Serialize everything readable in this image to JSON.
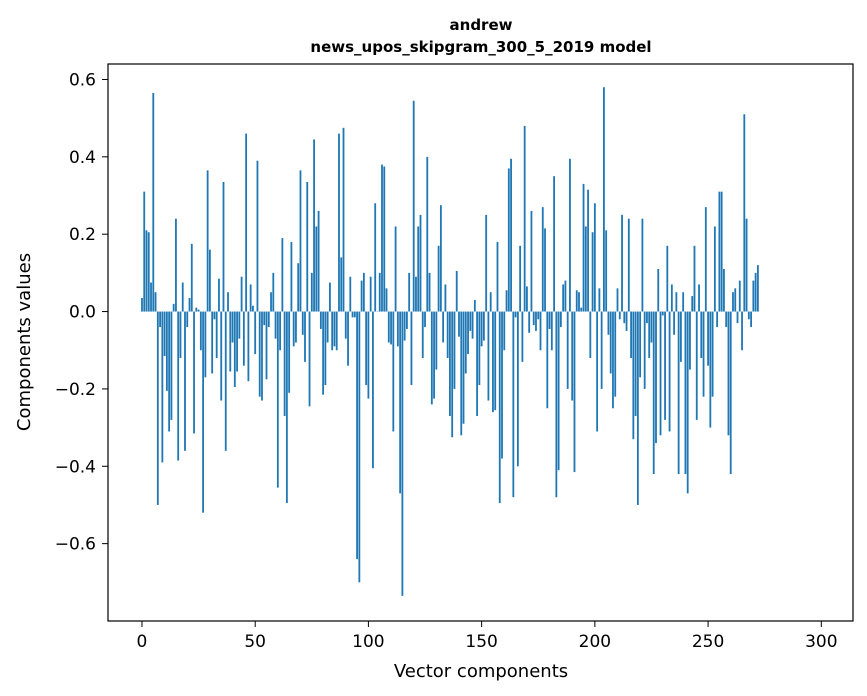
{
  "chart_data": {
    "type": "bar",
    "title_line1": "andrew",
    "title_line2": "news_upos_skipgram_300_5_2019 model",
    "xlabel": "Vector components",
    "ylabel": "Components values",
    "xlim": [
      -15,
      314
    ],
    "ylim": [
      -0.8,
      0.64
    ],
    "xticks": [
      0,
      50,
      100,
      150,
      200,
      250,
      300
    ],
    "xtick_labels": [
      "0",
      "50",
      "100",
      "150",
      "200",
      "250",
      "300"
    ],
    "yticks": [
      -0.6,
      -0.4,
      -0.2,
      0.0,
      0.2,
      0.4,
      0.6
    ],
    "ytick_labels": [
      "−0.6",
      "−0.4",
      "−0.2",
      "0.0",
      "0.2",
      "0.4",
      "0.6"
    ],
    "bar_color": "#1f77b4",
    "values": [
      0.035,
      0.31,
      0.21,
      0.205,
      0.075,
      0.565,
      0.05,
      -0.5,
      -0.04,
      -0.39,
      -0.115,
      -0.205,
      -0.31,
      -0.28,
      0.02,
      0.24,
      -0.385,
      -0.12,
      0.075,
      -0.36,
      -0.04,
      0.035,
      0.175,
      -0.315,
      0.01,
      0.005,
      -0.1,
      -0.52,
      -0.17,
      0.365,
      0.16,
      -0.16,
      -0.02,
      -0.12,
      0.085,
      -0.23,
      0.335,
      -0.36,
      0.05,
      -0.155,
      -0.08,
      -0.195,
      -0.155,
      -0.07,
      0.09,
      -0.14,
      0.46,
      -0.18,
      0.07,
      0.015,
      -0.11,
      0.39,
      -0.22,
      -0.23,
      -0.035,
      -0.175,
      -0.04,
      0.05,
      0.1,
      -0.07,
      -0.455,
      -0.1,
      0.19,
      -0.27,
      -0.495,
      -0.21,
      0.18,
      -0.09,
      -0.08,
      0.125,
      0.365,
      -0.06,
      -0.13,
      0.335,
      -0.245,
      0.1,
      0.445,
      0.22,
      0.26,
      -0.045,
      -0.215,
      -0.19,
      -0.08,
      0.075,
      -0.1,
      -0.09,
      -0.1,
      0.46,
      0.14,
      0.475,
      -0.07,
      -0.14,
      0.09,
      -0.015,
      -0.015,
      -0.64,
      -0.7,
      0.08,
      0.1,
      -0.19,
      -0.225,
      0.09,
      -0.405,
      0.28,
      0.0,
      0.1,
      0.38,
      0.375,
      0.06,
      -0.08,
      -0.085,
      -0.31,
      0.22,
      -0.09,
      -0.47,
      -0.735,
      -0.075,
      -0.045,
      0.1,
      -0.19,
      0.545,
      0.09,
      0.22,
      0.25,
      -0.12,
      -0.04,
      0.4,
      0.1,
      -0.24,
      -0.225,
      -0.15,
      0.17,
      0.275,
      -0.08,
      0.07,
      -0.12,
      -0.27,
      -0.325,
      -0.2,
      0.105,
      -0.065,
      -0.32,
      -0.29,
      -0.16,
      -0.11,
      -0.05,
      -0.07,
      0.03,
      -0.27,
      -0.19,
      -0.09,
      -0.075,
      0.25,
      -0.23,
      0.05,
      -0.26,
      -0.255,
      0.18,
      -0.495,
      -0.38,
      -0.1,
      0.055,
      0.37,
      0.395,
      -0.48,
      -0.015,
      -0.4,
      0.17,
      -0.13,
      0.48,
      0.065,
      -0.055,
      0.26,
      -0.035,
      -0.05,
      -0.02,
      -0.1,
      0.27,
      0.215,
      -0.25,
      -0.045,
      -0.1,
      0.35,
      -0.48,
      -0.41,
      -0.04,
      0.07,
      0.08,
      -0.2,
      0.395,
      -0.23,
      -0.415,
      0.055,
      0.05,
      0.01,
      0.33,
      0.22,
      0.315,
      -0.12,
      0.205,
      0.28,
      -0.31,
      0.06,
      -0.2,
      0.58,
      0.21,
      -0.06,
      -0.16,
      -0.25,
      -0.22,
      0.06,
      -0.02,
      0.25,
      -0.03,
      -0.05,
      0.24,
      -0.12,
      -0.33,
      -0.27,
      -0.5,
      -0.17,
      0.24,
      -0.2,
      -0.03,
      -0.12,
      -0.08,
      -0.42,
      -0.34,
      0.11,
      -0.32,
      -0.01,
      -0.28,
      0.17,
      -0.31,
      0.07,
      -0.06,
      0.05,
      -0.42,
      -0.13,
      0.05,
      -0.42,
      -0.47,
      -0.15,
      0.04,
      0.17,
      -0.28,
      0.07,
      -0.12,
      -0.22,
      0.27,
      -0.14,
      -0.3,
      -0.22,
      0.22,
      -0.04,
      0.31,
      0.31,
      0.11,
      -0.04,
      -0.32,
      -0.42,
      0.05,
      0.06,
      -0.03,
      0.08,
      -0.1,
      0.51,
      0.24,
      -0.02,
      -0.04,
      0.08,
      0.1,
      0.12
    ]
  }
}
